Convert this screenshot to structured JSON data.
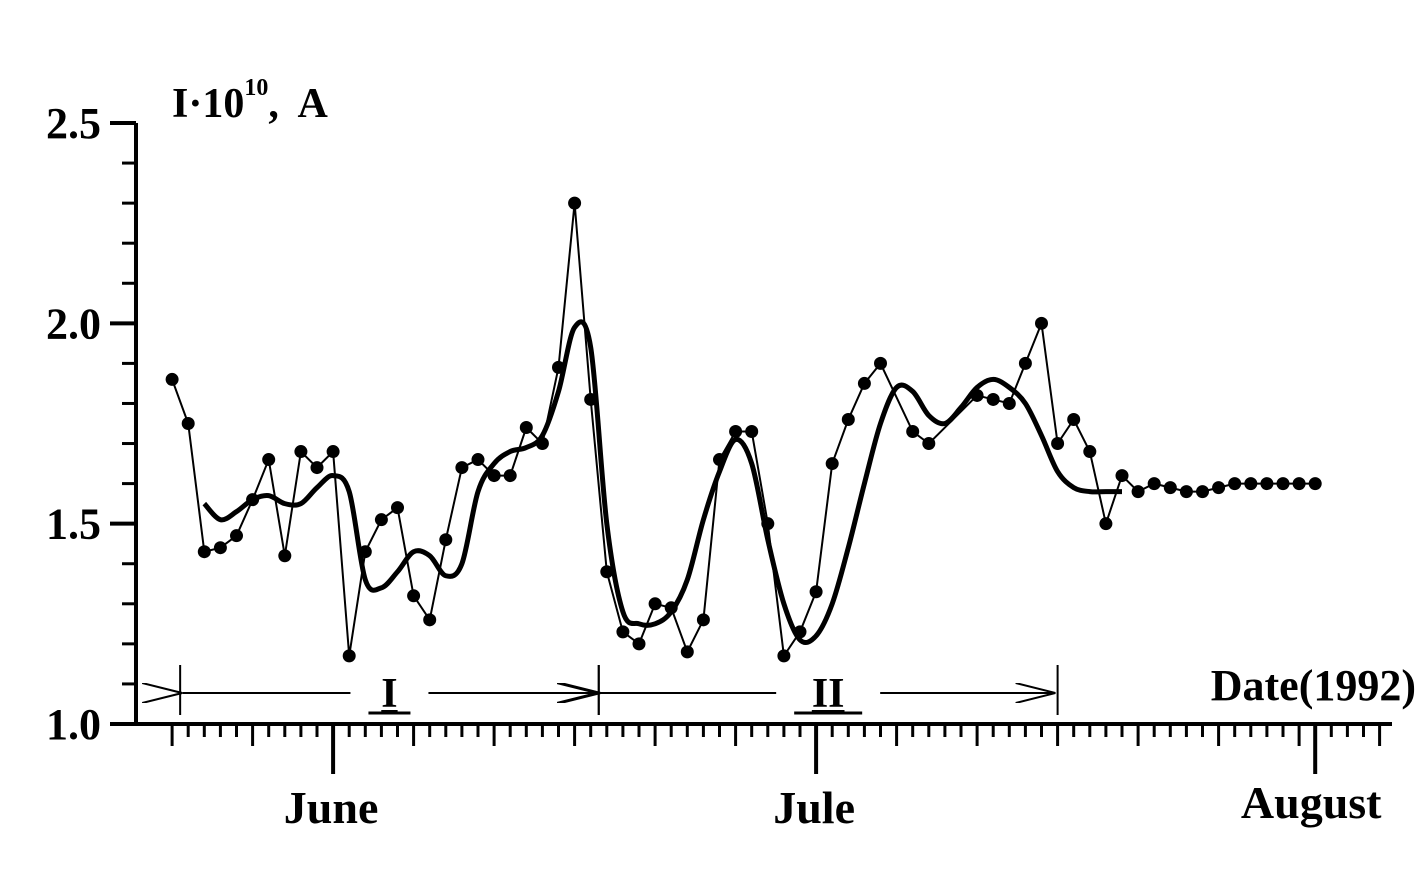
{
  "chart_data": {
    "type": "line",
    "ylabel_main": "I·10",
    "ylabel_exp": "10",
    "ylabel_unit": ",  A",
    "xlabel": "Date(1992)",
    "ylim": [
      1.0,
      2.5
    ],
    "y_ticks": [
      "1.0",
      "1.5",
      "2.0",
      "2.5"
    ],
    "month_labels": [
      {
        "text": "June",
        "day": 1
      },
      {
        "text": "Jule",
        "day": 31
      },
      {
        "text": "August",
        "day": 62
      }
    ],
    "period_labels": [
      "I",
      "II"
    ],
    "periods": [
      [
        -8.5,
        17.5
      ],
      [
        17.5,
        46
      ]
    ],
    "x_days_range": [
      -9.5,
      66
    ],
    "grid": false,
    "series": [
      {
        "style": "raw-points",
        "x": [
          -9,
          -8,
          -7,
          -6,
          -5,
          -4,
          -3,
          -2,
          -1,
          0,
          1,
          2,
          3,
          4,
          5,
          6,
          7,
          8,
          9,
          10,
          11,
          12,
          13,
          14,
          15,
          16,
          17,
          18,
          19,
          20,
          21,
          22,
          23,
          24,
          25,
          26,
          27,
          28,
          29,
          30,
          31,
          32,
          33,
          34,
          35,
          37,
          38,
          41,
          42,
          43,
          44,
          45,
          46,
          47,
          48,
          49,
          50,
          51,
          52,
          53,
          54,
          55,
          56,
          57,
          58,
          59,
          60,
          61,
          62
        ],
        "y": [
          1.86,
          1.75,
          1.43,
          1.44,
          1.47,
          1.56,
          1.66,
          1.42,
          1.68,
          1.64,
          1.68,
          1.17,
          1.43,
          1.51,
          1.54,
          1.32,
          1.26,
          1.46,
          1.64,
          1.66,
          1.62,
          1.62,
          1.74,
          1.7,
          1.89,
          2.3,
          1.81,
          1.38,
          1.23,
          1.2,
          1.3,
          1.29,
          1.18,
          1.26,
          1.66,
          1.73,
          1.73,
          1.5,
          1.17,
          1.23,
          1.33,
          1.65,
          1.76,
          1.85,
          1.9,
          1.73,
          1.7,
          1.82,
          1.81,
          1.8,
          1.9,
          2.0,
          1.7,
          1.76,
          1.68,
          1.5,
          1.62,
          1.58,
          1.6,
          1.59,
          1.58,
          1.58,
          1.59,
          1.6,
          1.6,
          1.6,
          1.6,
          1.6,
          1.6
        ]
      },
      {
        "style": "smoothed",
        "x": [
          -7,
          -6,
          -5,
          -4,
          -3,
          -2,
          -1,
          0,
          1,
          2,
          3,
          4,
          5,
          6,
          7,
          8,
          9,
          10,
          11,
          12,
          13,
          14,
          15,
          16,
          17,
          18,
          19,
          20,
          21,
          22,
          23,
          24,
          25,
          26,
          27,
          28,
          29,
          30,
          31,
          32,
          33,
          34,
          35,
          36,
          37,
          38,
          39,
          40,
          41,
          42,
          43,
          44,
          45,
          46,
          47,
          48,
          49,
          50
        ],
        "y": [
          1.55,
          1.51,
          1.53,
          1.56,
          1.57,
          1.55,
          1.55,
          1.59,
          1.62,
          1.58,
          1.36,
          1.34,
          1.38,
          1.43,
          1.42,
          1.37,
          1.4,
          1.58,
          1.65,
          1.68,
          1.69,
          1.72,
          1.83,
          1.99,
          1.94,
          1.5,
          1.28,
          1.25,
          1.25,
          1.28,
          1.36,
          1.51,
          1.63,
          1.71,
          1.65,
          1.46,
          1.3,
          1.21,
          1.22,
          1.3,
          1.44,
          1.6,
          1.75,
          1.84,
          1.83,
          1.77,
          1.75,
          1.79,
          1.84,
          1.86,
          1.84,
          1.8,
          1.72,
          1.63,
          1.59,
          1.58,
          1.58,
          1.58
        ]
      }
    ]
  }
}
